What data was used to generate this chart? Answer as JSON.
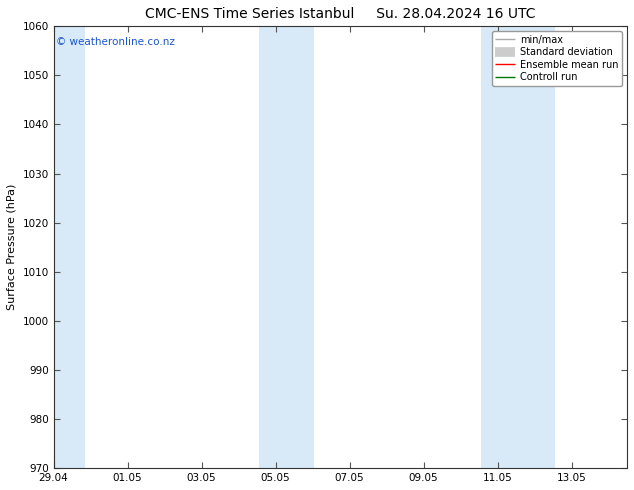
{
  "title_left": "CMC-ENS Time Series Istanbul",
  "title_right": "Su. 28.04.2024 16 UTC",
  "ylabel": "Surface Pressure (hPa)",
  "ylim": [
    970,
    1060
  ],
  "yticks": [
    970,
    980,
    990,
    1000,
    1010,
    1020,
    1030,
    1040,
    1050,
    1060
  ],
  "xtick_labels": [
    "29.04",
    "01.05",
    "03.05",
    "05.05",
    "07.05",
    "09.05",
    "11.05",
    "13.05"
  ],
  "xtick_positions": [
    0,
    2,
    4,
    6,
    8,
    10,
    12,
    14
  ],
  "xlim": [
    0,
    15.5
  ],
  "shaded_bands": [
    {
      "x_start": 0.0,
      "x_end": 0.85,
      "color": "#d8eaf7"
    },
    {
      "x_start": 5.55,
      "x_end": 7.05,
      "color": "#d8eaf7"
    },
    {
      "x_start": 11.55,
      "x_end": 13.55,
      "color": "#d8eaf7"
    }
  ],
  "watermark": "© weatheronline.co.nz",
  "watermark_color": "#1a55cc",
  "legend_items": [
    {
      "label": "min/max",
      "color": "#aaaaaa",
      "lw": 1.0,
      "type": "line"
    },
    {
      "label": "Standard deviation",
      "color": "#cccccc",
      "lw": 7,
      "type": "line"
    },
    {
      "label": "Ensemble mean run",
      "color": "#ff0000",
      "lw": 1.0,
      "type": "line"
    },
    {
      "label": "Controll run",
      "color": "#007700",
      "lw": 1.0,
      "type": "line"
    }
  ],
  "background_color": "#ffffff",
  "plot_bg_color": "#ffffff",
  "title_fontsize": 10,
  "tick_fontsize": 7.5,
  "label_fontsize": 8,
  "legend_fontsize": 7,
  "watermark_fontsize": 7.5
}
